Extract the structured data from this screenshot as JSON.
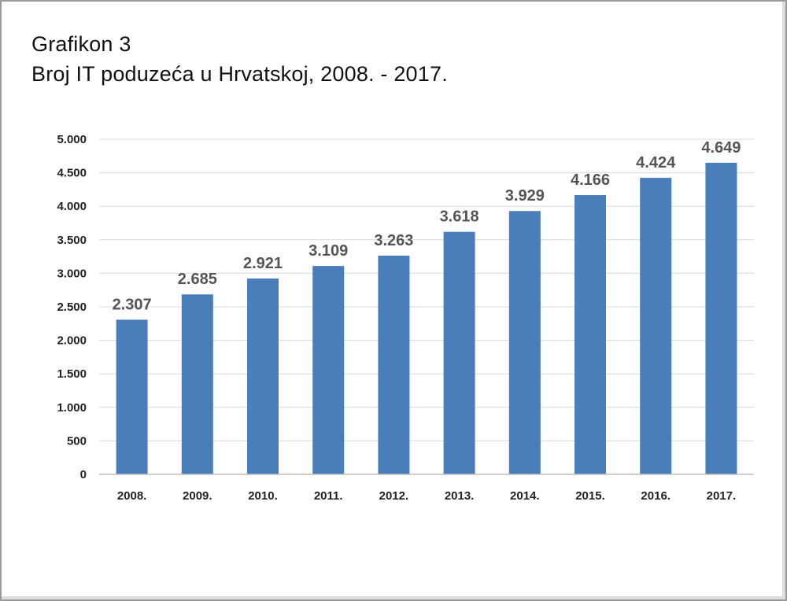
{
  "chart_data": {
    "type": "bar",
    "title": "Grafikon 3",
    "subtitle": "Broj IT poduzeća u Hrvatskoj, 2008. - 2017.",
    "categories": [
      "2008.",
      "2009.",
      "2010.",
      "2011.",
      "2012.",
      "2013.",
      "2014.",
      "2015.",
      "2016.",
      "2017."
    ],
    "values": [
      2307,
      2685,
      2921,
      3109,
      3263,
      3618,
      3929,
      4166,
      4424,
      4649
    ],
    "data_labels": [
      "2.307",
      "2.685",
      "2.921",
      "3.109",
      "3.263",
      "3.618",
      "3.929",
      "4.166",
      "4.424",
      "4.649"
    ],
    "ylim": [
      0,
      5000
    ],
    "yticks": [
      0,
      500,
      1000,
      1500,
      2000,
      2500,
      3000,
      3500,
      4000,
      4500,
      5000
    ],
    "ytick_labels": [
      "0",
      "500",
      "1.000",
      "1.500",
      "2.000",
      "2.500",
      "3.000",
      "3.500",
      "4.000",
      "4.500",
      "5.000"
    ],
    "xlabel": "",
    "ylabel": "",
    "grid": true,
    "legend": "none",
    "bar_color": "#4a7ebb",
    "grid_color": "#d9d9d9"
  }
}
